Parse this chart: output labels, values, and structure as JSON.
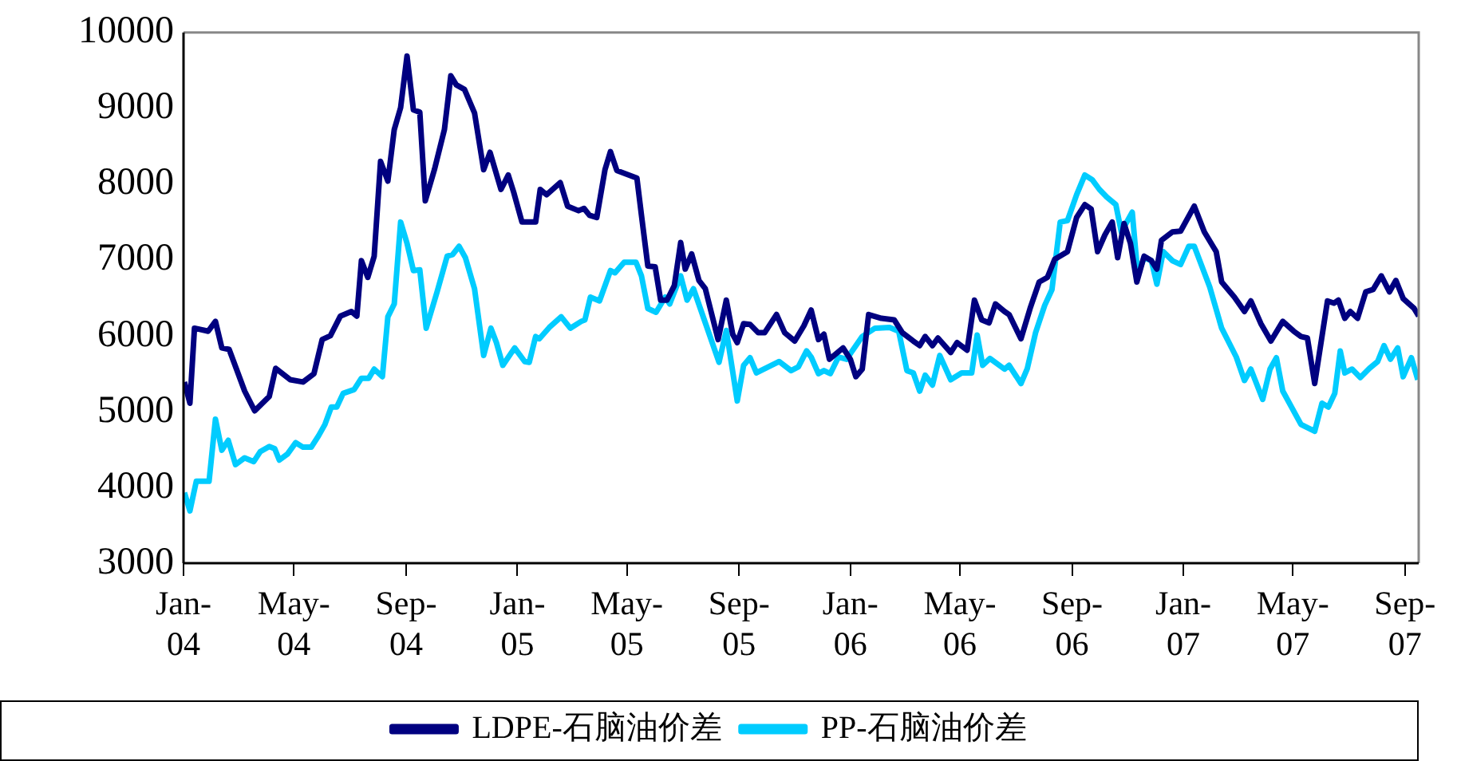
{
  "chart_data": {
    "type": "line",
    "ylim": [
      3000,
      10000
    ],
    "yticks": [
      3000,
      4000,
      5000,
      6000,
      7000,
      8000,
      9000,
      10000
    ],
    "xlim": [
      "2004-01",
      "2007-09-16"
    ],
    "xticks": [
      {
        "value": "2004-01",
        "label": "Jan-04"
      },
      {
        "value": "2004-05",
        "label": "May-04"
      },
      {
        "value": "2004-09",
        "label": "Sep-04"
      },
      {
        "value": "2005-01",
        "label": "Jan-05"
      },
      {
        "value": "2005-05",
        "label": "May-05"
      },
      {
        "value": "2005-09",
        "label": "Sep-05"
      },
      {
        "value": "2006-01",
        "label": "Jan-06"
      },
      {
        "value": "2006-05",
        "label": "May-06"
      },
      {
        "value": "2006-09",
        "label": "Sep-06"
      },
      {
        "value": "2007-01",
        "label": "Jan-07"
      },
      {
        "value": "2007-05",
        "label": "May-07"
      },
      {
        "value": "2007-09",
        "label": "Sep-07"
      }
    ],
    "grid": false,
    "legend": "bottom",
    "marker": "none",
    "line_style": "solid",
    "series": [
      {
        "name": "LDPE-石脑油价差",
        "color": "#000080",
        "x": [
          "2004-01-02",
          "2004-01-08",
          "2004-01-13",
          "2004-01-28",
          "2004-02-05",
          "2004-02-12",
          "2004-02-20",
          "2004-03-08",
          "2004-03-19",
          "2004-04-04",
          "2004-04-11",
          "2004-04-27",
          "2004-05-11",
          "2004-05-23",
          "2004-06-01",
          "2004-06-10",
          "2004-06-21",
          "2004-07-03",
          "2004-07-09",
          "2004-07-14",
          "2004-07-21",
          "2004-07-28",
          "2004-08-04",
          "2004-08-12",
          "2004-08-19",
          "2004-08-26",
          "2004-09-02",
          "2004-09-09",
          "2004-09-16",
          "2004-09-22",
          "2004-10-02",
          "2004-10-13",
          "2004-10-20",
          "2004-10-26",
          "2004-11-04",
          "2004-11-15",
          "2004-11-25",
          "2004-12-02",
          "2004-12-14",
          "2004-12-22",
          "2004-12-28",
          "2005-01-06",
          "2005-01-21",
          "2005-01-26",
          "2005-02-02",
          "2005-02-17",
          "2005-02-25",
          "2005-03-09",
          "2005-03-15",
          "2005-03-21",
          "2005-03-29",
          "2005-04-07",
          "2005-04-13",
          "2005-04-20",
          "2005-05-01",
          "2005-05-12",
          "2005-05-17",
          "2005-05-24",
          "2005-06-01",
          "2005-06-07",
          "2005-06-14",
          "2005-06-22",
          "2005-06-29",
          "2005-07-04",
          "2005-07-11",
          "2005-07-19",
          "2005-07-26",
          "2005-08-09",
          "2005-08-18",
          "2005-08-25",
          "2005-08-30",
          "2005-09-06",
          "2005-09-13",
          "2005-09-22",
          "2005-09-29",
          "2005-10-12",
          "2005-10-21",
          "2005-11-01",
          "2005-11-11",
          "2005-11-19",
          "2005-11-27",
          "2005-12-03",
          "2005-12-09",
          "2005-12-24",
          "2006-01-01",
          "2006-01-07",
          "2006-01-14",
          "2006-01-21",
          "2006-02-04",
          "2006-02-18",
          "2006-02-27",
          "2006-03-11",
          "2006-03-18",
          "2006-03-24",
          "2006-04-01",
          "2006-04-07",
          "2006-04-21",
          "2006-04-28",
          "2006-05-09",
          "2006-05-17",
          "2006-05-25",
          "2006-06-02",
          "2006-06-09",
          "2006-06-19",
          "2006-06-24",
          "2006-07-07",
          "2006-07-17",
          "2006-07-27",
          "2006-08-05",
          "2006-08-13",
          "2006-08-27",
          "2006-09-06",
          "2006-09-15",
          "2006-09-22",
          "2006-09-29",
          "2006-10-07",
          "2006-10-15",
          "2006-10-21",
          "2006-10-28",
          "2006-11-04",
          "2006-11-11",
          "2006-11-19",
          "2006-11-27",
          "2006-12-03",
          "2006-12-08",
          "2006-12-20",
          "2006-12-29",
          "2007-01-13",
          "2007-01-24",
          "2007-02-06",
          "2007-02-12",
          "2007-02-26",
          "2007-03-09",
          "2007-03-16",
          "2007-03-27",
          "2007-04-07",
          "2007-04-20",
          "2007-05-02",
          "2007-05-10",
          "2007-05-17",
          "2007-05-25",
          "2007-06-08",
          "2007-06-15",
          "2007-06-20",
          "2007-06-27",
          "2007-07-03",
          "2007-07-11",
          "2007-07-20",
          "2007-07-28",
          "2007-08-06",
          "2007-08-15",
          "2007-08-22",
          "2007-08-30",
          "2007-09-11",
          "2007-09-16"
        ],
        "values": [
          5390,
          5110,
          6100,
          6060,
          6190,
          5840,
          5820,
          5270,
          5010,
          5200,
          5570,
          5420,
          5390,
          5500,
          5950,
          6000,
          6260,
          6320,
          6260,
          6990,
          6770,
          7050,
          8300,
          8040,
          8720,
          9010,
          9690,
          8980,
          8950,
          7780,
          8190,
          8720,
          9430,
          9310,
          9250,
          8940,
          8190,
          8420,
          7930,
          8120,
          7890,
          7500,
          7500,
          7930,
          7860,
          8020,
          7710,
          7650,
          7680,
          7590,
          7560,
          8190,
          8430,
          8180,
          8130,
          8080,
          7590,
          6920,
          6910,
          6470,
          6470,
          6660,
          7230,
          6880,
          7080,
          6730,
          6620,
          5950,
          6470,
          6020,
          5910,
          6160,
          6150,
          6040,
          6040,
          6280,
          6040,
          5930,
          6130,
          6340,
          5950,
          6020,
          5690,
          5840,
          5690,
          5460,
          5560,
          6280,
          6230,
          6210,
          6040,
          5930,
          5870,
          5990,
          5870,
          5970,
          5780,
          5910,
          5810,
          6470,
          6210,
          6170,
          6420,
          6320,
          6280,
          5960,
          6360,
          6710,
          6770,
          7010,
          7110,
          7560,
          7730,
          7670,
          7110,
          7330,
          7500,
          7030,
          7480,
          7220,
          6710,
          7050,
          6990,
          6880,
          7260,
          7370,
          7380,
          7710,
          7370,
          7110,
          6710,
          6510,
          6320,
          6460,
          6160,
          5930,
          6190,
          6060,
          5990,
          5970,
          5370,
          6460,
          6430,
          6470,
          6230,
          6320,
          6230,
          6580,
          6610,
          6790,
          6580,
          6730,
          6490,
          6360,
          6260
        ]
      },
      {
        "name": "PP-石脑油价差",
        "color": "#00ccff",
        "x": [
          "2004-01-02",
          "2004-01-08",
          "2004-01-15",
          "2004-01-29",
          "2004-02-05",
          "2004-02-12",
          "2004-02-19",
          "2004-02-27",
          "2004-03-08",
          "2004-03-18",
          "2004-03-25",
          "2004-04-04",
          "2004-04-10",
          "2004-04-15",
          "2004-04-24",
          "2004-05-03",
          "2004-05-11",
          "2004-05-20",
          "2004-05-28",
          "2004-06-04",
          "2004-06-11",
          "2004-06-17",
          "2004-06-24",
          "2004-07-06",
          "2004-07-14",
          "2004-07-22",
          "2004-07-28",
          "2004-08-06",
          "2004-08-12",
          "2004-08-19",
          "2004-08-26",
          "2004-09-02",
          "2004-09-09",
          "2004-09-16",
          "2004-09-23",
          "2004-10-05",
          "2004-10-16",
          "2004-10-22",
          "2004-10-29",
          "2004-11-05",
          "2004-11-15",
          "2004-11-25",
          "2004-12-03",
          "2004-12-09",
          "2004-12-16",
          "2004-12-29",
          "2005-01-09",
          "2005-01-14",
          "2005-01-21",
          "2005-01-25",
          "2005-02-05",
          "2005-02-18",
          "2005-02-28",
          "2005-03-12",
          "2005-03-16",
          "2005-03-22",
          "2005-04-01",
          "2005-04-13",
          "2005-04-18",
          "2005-04-28",
          "2005-05-11",
          "2005-05-17",
          "2005-05-24",
          "2005-06-02",
          "2005-06-12",
          "2005-06-17",
          "2005-06-29",
          "2005-07-06",
          "2005-07-13",
          "2005-07-26",
          "2005-08-10",
          "2005-08-18",
          "2005-08-30",
          "2005-09-06",
          "2005-09-13",
          "2005-09-20",
          "2005-10-15",
          "2005-10-28",
          "2005-11-05",
          "2005-11-14",
          "2005-11-19",
          "2005-11-27",
          "2005-12-03",
          "2005-12-10",
          "2005-12-19",
          "2005-12-28",
          "2006-01-03",
          "2006-01-14",
          "2006-01-28",
          "2006-02-13",
          "2006-02-23",
          "2006-03-04",
          "2006-03-11",
          "2006-03-18",
          "2006-03-24",
          "2006-04-01",
          "2006-04-09",
          "2006-04-21",
          "2006-05-03",
          "2006-05-14",
          "2006-05-20",
          "2006-05-26",
          "2006-06-03",
          "2006-06-19",
          "2006-06-24",
          "2006-07-07",
          "2006-07-14",
          "2006-07-23",
          "2006-08-02",
          "2006-08-10",
          "2006-08-19",
          "2006-08-27",
          "2006-09-06",
          "2006-09-15",
          "2006-09-23",
          "2006-10-01",
          "2006-10-09",
          "2006-10-19",
          "2006-10-25",
          "2006-11-06",
          "2006-11-12",
          "2006-11-19",
          "2006-11-27",
          "2006-12-03",
          "2006-12-10",
          "2006-12-20",
          "2006-12-29",
          "2007-01-07",
          "2007-01-13",
          "2007-01-30",
          "2007-02-12",
          "2007-02-28",
          "2007-03-09",
          "2007-03-16",
          "2007-03-29",
          "2007-04-06",
          "2007-04-13",
          "2007-04-20",
          "2007-05-10",
          "2007-05-25",
          "2007-06-02",
          "2007-06-09",
          "2007-06-16",
          "2007-06-22",
          "2007-06-27",
          "2007-07-05",
          "2007-07-14",
          "2007-07-24",
          "2007-08-02",
          "2007-08-09",
          "2007-08-16",
          "2007-08-24",
          "2007-08-30",
          "2007-09-08",
          "2007-09-15"
        ],
        "values": [
          3930,
          3690,
          4080,
          4080,
          4900,
          4490,
          4620,
          4300,
          4390,
          4340,
          4470,
          4540,
          4510,
          4360,
          4440,
          4590,
          4530,
          4530,
          4680,
          4830,
          5060,
          5060,
          5240,
          5290,
          5440,
          5440,
          5560,
          5460,
          6250,
          6420,
          7500,
          7220,
          6860,
          6870,
          6100,
          6580,
          7050,
          7070,
          7180,
          7030,
          6620,
          5740,
          6100,
          5910,
          5610,
          5840,
          5660,
          5650,
          5990,
          5960,
          6110,
          6250,
          6100,
          6190,
          6210,
          6510,
          6460,
          6860,
          6830,
          6970,
          6970,
          6790,
          6360,
          6310,
          6510,
          6420,
          6790,
          6470,
          6620,
          6170,
          5650,
          6070,
          5140,
          5610,
          5710,
          5510,
          5660,
          5540,
          5590,
          5800,
          5720,
          5500,
          5540,
          5500,
          5720,
          5690,
          5800,
          5990,
          6100,
          6110,
          6060,
          5540,
          5510,
          5270,
          5480,
          5350,
          5740,
          5420,
          5510,
          5510,
          6010,
          5610,
          5700,
          5560,
          5610,
          5370,
          5570,
          6040,
          6400,
          6610,
          7500,
          7520,
          7860,
          8120,
          8060,
          7930,
          7830,
          7730,
          7370,
          7630,
          6810,
          7030,
          6990,
          6680,
          7110,
          6990,
          6940,
          7180,
          7180,
          6640,
          6100,
          5720,
          5410,
          5560,
          5160,
          5560,
          5710,
          5270,
          4830,
          4740,
          5110,
          5060,
          5240,
          5800,
          5510,
          5560,
          5450,
          5570,
          5660,
          5870,
          5690,
          5840,
          5460,
          5710,
          5420
        ]
      }
    ]
  }
}
